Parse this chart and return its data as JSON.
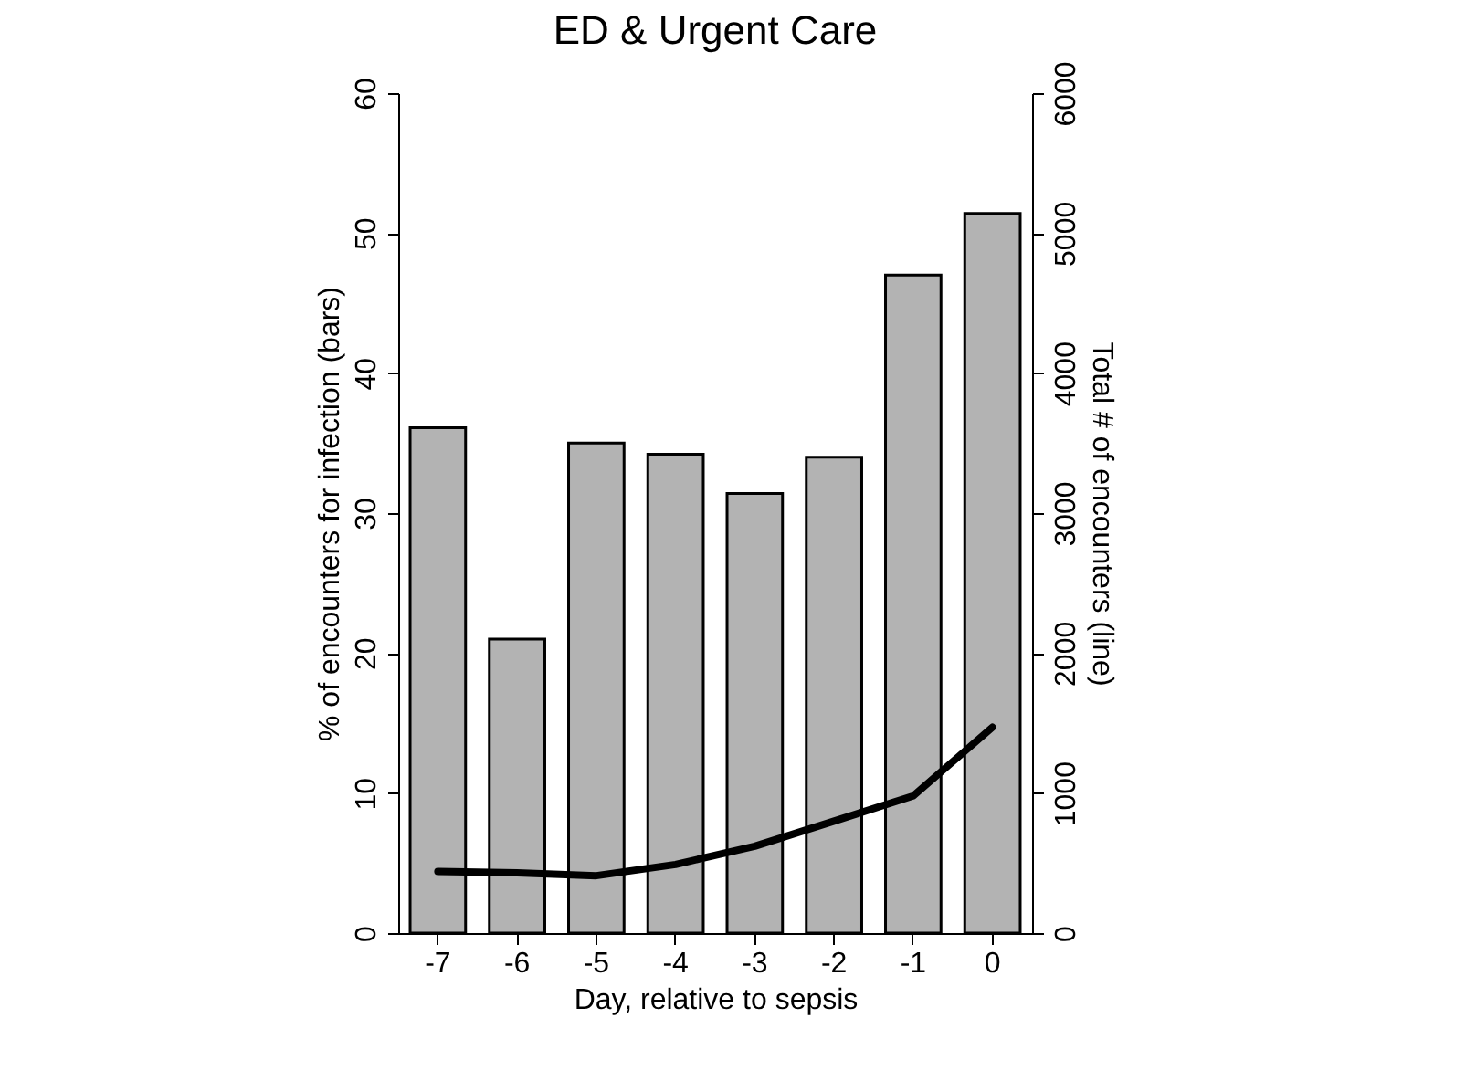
{
  "chart_data": {
    "type": "bar",
    "title": "ED & Urgent Care",
    "xlabel": "Day, relative to sepsis",
    "ylabel": "% of encounters for infection (bars)",
    "y2label": "Total # of encounters (line)",
    "categories": [
      "-7",
      "-6",
      "-5",
      "-4",
      "-3",
      "-2",
      "-1",
      "0"
    ],
    "series": [
      {
        "color": "#b3b3b3",
        "values": [
          36.1,
          21,
          35,
          34.2,
          31.4,
          34,
          47,
          51.4
        ]
      },
      {
        "type": "line",
        "axis": "y2",
        "color": "#000000",
        "values": [
          440,
          430,
          410,
          490,
          620,
          800,
          980,
          1470
        ]
      }
    ],
    "ylim": [
      0,
      60
    ],
    "yticks": [
      0,
      10,
      20,
      30,
      40,
      50,
      60
    ],
    "y2lim": [
      0,
      6000
    ],
    "y2ticks": [
      0,
      1000,
      2000,
      3000,
      4000,
      5000,
      6000
    ],
    "grid": false
  }
}
